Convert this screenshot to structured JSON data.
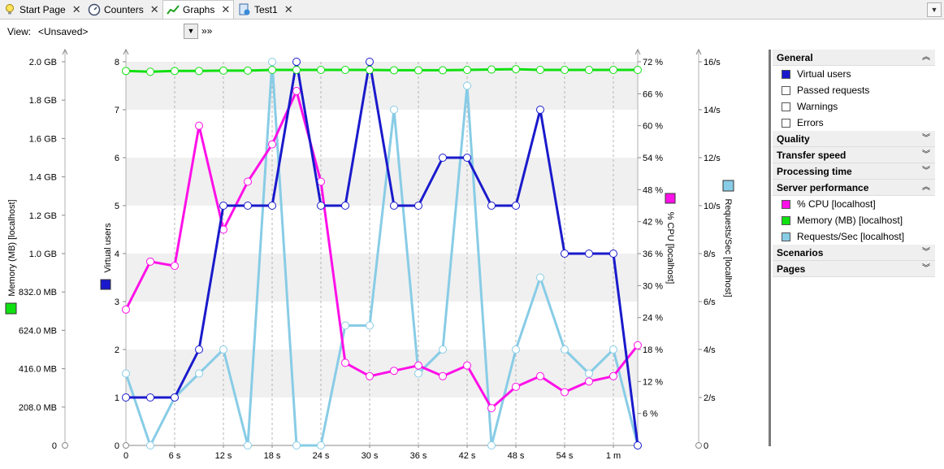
{
  "tabs": [
    {
      "label": "Start Page",
      "icon": "lightbulb-icon",
      "active": false
    },
    {
      "label": "Counters",
      "icon": "gauge-icon",
      "active": false
    },
    {
      "label": "Graphs",
      "icon": "line-graph-icon",
      "active": true
    },
    {
      "label": "Test1",
      "icon": "test-document-icon",
      "active": false
    }
  ],
  "tab_close_glyph": "✕",
  "tab_menu_glyph": "▼",
  "view": {
    "label": "View:",
    "value": "<Unsaved>",
    "more": "»»"
  },
  "chart_data": {
    "type": "line",
    "x_ticks": [
      "0",
      "6 s",
      "12 s",
      "18 s",
      "24 s",
      "30 s",
      "36 s",
      "42 s",
      "48 s",
      "54 s",
      "1 m"
    ],
    "x_seconds": [
      0,
      3,
      6,
      9,
      12,
      15,
      18,
      21,
      24,
      27,
      30,
      33,
      36,
      39,
      42,
      45,
      48,
      51,
      54,
      57,
      60,
      63
    ],
    "axes": {
      "memory": {
        "label": "Memory (MB) [localhost]",
        "ticks": [
          "0",
          "208.0 MB",
          "416.0 MB",
          "624.0 MB",
          "832.0 MB",
          "1.0 GB",
          "1.2 GB",
          "1.4 GB",
          "1.6 GB",
          "1.8 GB",
          "2.0 GB"
        ],
        "ylim_mb": [
          0,
          2080
        ]
      },
      "virtual_users": {
        "label": "Virtual users",
        "ticks": [
          "0",
          "1",
          "2",
          "3",
          "4",
          "5",
          "6",
          "7",
          "8"
        ],
        "ylim": [
          0,
          8
        ]
      },
      "cpu": {
        "label": "% CPU [localhost]",
        "ticks": [
          "6 %",
          "12 %",
          "18 %",
          "24 %",
          "30 %",
          "36 %",
          "42 %",
          "48 %",
          "54 %",
          "60 %",
          "66 %",
          "72 %"
        ],
        "ylim": [
          0,
          72
        ]
      },
      "requests": {
        "label": "Requests/Sec [localhost]",
        "ticks": [
          "0",
          "2/s",
          "4/s",
          "6/s",
          "8/s",
          "10/s",
          "12/s",
          "14/s",
          "16/s"
        ],
        "ylim": [
          0,
          16
        ]
      }
    },
    "series": [
      {
        "name": "Virtual users",
        "axis": "virtual_users",
        "color": "#1a1acc",
        "values": [
          1,
          1,
          1,
          2,
          5,
          5,
          5,
          8,
          5,
          5,
          8,
          5,
          5,
          6,
          6,
          5,
          5,
          7,
          4,
          4,
          4,
          0
        ]
      },
      {
        "name": "% CPU [localhost]",
        "axis": "cpu",
        "color": "#ff10e8",
        "values": [
          25.5,
          34.5,
          33.7,
          60,
          40.5,
          49.5,
          56.5,
          66.5,
          49.5,
          15.5,
          13,
          14,
          15,
          13,
          15,
          7,
          11,
          13,
          10,
          12,
          13,
          18.8
        ]
      },
      {
        "name": "Memory (MB) [localhost]",
        "axis": "memory",
        "color": "#10e010",
        "values": [
          2030,
          2026,
          2030,
          2030,
          2032,
          2032,
          2036,
          2036,
          2036,
          2036,
          2036,
          2034,
          2034,
          2034,
          2036,
          2038,
          2040,
          2036,
          2036,
          2036,
          2036,
          2036
        ]
      },
      {
        "name": "Requests/Sec [localhost]",
        "axis": "requests",
        "color": "#88cce6",
        "values": [
          3,
          0,
          2,
          3,
          4,
          0,
          16,
          0,
          0,
          5,
          5,
          14,
          3,
          4,
          15,
          0,
          4,
          7,
          4,
          3,
          4,
          0
        ]
      }
    ]
  },
  "panel": {
    "sections": [
      {
        "title": "General",
        "expanded": true,
        "items": [
          {
            "label": "Virtual users",
            "color": "#1a1acc",
            "checked": true
          },
          {
            "label": "Passed requests",
            "color": "#ffffff",
            "checked": false
          },
          {
            "label": "Warnings",
            "color": "#ffffff",
            "checked": false
          },
          {
            "label": "Errors",
            "color": "#ffffff",
            "checked": false
          }
        ]
      },
      {
        "title": "Quality",
        "expanded": false,
        "items": []
      },
      {
        "title": "Transfer speed",
        "expanded": false,
        "items": []
      },
      {
        "title": "Processing time",
        "expanded": false,
        "items": []
      },
      {
        "title": "Server performance",
        "expanded": true,
        "items": [
          {
            "label": "% CPU [localhost]",
            "color": "#ff10e8",
            "checked": true
          },
          {
            "label": "Memory (MB) [localhost]",
            "color": "#10e010",
            "checked": true
          },
          {
            "label": "Requests/Sec [localhost]",
            "color": "#88cce6",
            "checked": true
          }
        ]
      },
      {
        "title": "Scenarios",
        "expanded": false,
        "items": []
      },
      {
        "title": "Pages",
        "expanded": false,
        "items": []
      }
    ],
    "expanded_glyph": "⌃",
    "collapsed_glyph": "⌄"
  }
}
